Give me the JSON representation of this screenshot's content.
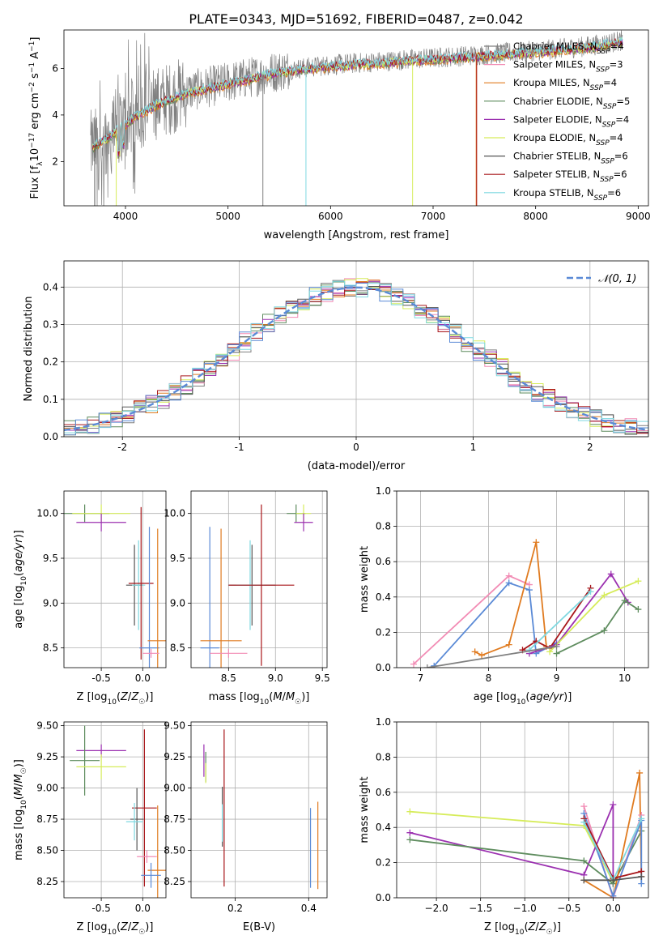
{
  "figure": {
    "title": "PLATE=0343, MJD=51692, FIBERID=0487, z=0.042"
  },
  "colors": {
    "chabrier_miles": "#7f7f7f",
    "salpeter_miles": "#f28bb4",
    "kroupa_miles": "#e07b20",
    "chabrier_elodie": "#5e8c5e",
    "salpeter_elodie": "#9b30b0",
    "kroupa_elodie": "#d6ec5a",
    "chabrier_stelib": "#555555",
    "salpeter_stelib": "#a8161a",
    "kroupa_stelib": "#7fd8e0",
    "normal": "#5a8ad6",
    "grid": "#b0b0b0",
    "data": "#808080",
    "blue_model": "#5a8ad6"
  },
  "chart_data": [
    {
      "id": "spectrum",
      "type": "line",
      "title": "PLATE=0343, MJD=51692, FIBERID=0487, z=0.042",
      "xlabel": "wavelength [Angstrom, rest frame]",
      "ylabel": "Flux [f_λ 10^-17 erg cm^-2 s^-1 A^-1]",
      "xlim": [
        3400,
        9100
      ],
      "ylim": [
        0.1,
        7.65
      ],
      "xticks": [
        4000,
        5000,
        6000,
        7000,
        8000,
        9000
      ],
      "yticks": [
        2,
        4,
        6
      ],
      "legend_position": "right",
      "series": [
        {
          "name": "Chabrier MILES",
          "nssp": "4",
          "color_key": "chabrier_miles"
        },
        {
          "name": "Salpeter MILES",
          "nssp": "3",
          "color_key": "salpeter_miles"
        },
        {
          "name": "Kroupa MILES",
          "nssp": "4",
          "color_key": "kroupa_miles"
        },
        {
          "name": "Chabrier ELODIE",
          "nssp": "5",
          "color_key": "chabrier_elodie"
        },
        {
          "name": "Salpeter ELODIE",
          "nssp": "4",
          "color_key": "salpeter_elodie"
        },
        {
          "name": "Kroupa ELODIE",
          "nssp": "4",
          "color_key": "kroupa_elodie"
        },
        {
          "name": "Chabrier STELIB",
          "nssp": "6",
          "color_key": "chabrier_stelib"
        },
        {
          "name": "Salpeter STELIB",
          "nssp": "6",
          "color_key": "salpeter_stelib"
        },
        {
          "name": "Kroupa STELIB",
          "nssp": "6",
          "color_key": "kroupa_stelib"
        }
      ],
      "continuum": {
        "x": [
          3650,
          3800,
          3950,
          4100,
          4300,
          4600,
          5000,
          5500,
          6000,
          6500,
          7000,
          7500,
          8000,
          8500,
          8850
        ],
        "y": [
          2.6,
          3.0,
          3.5,
          4.0,
          4.5,
          5.0,
          5.4,
          5.9,
          6.15,
          6.3,
          6.45,
          6.6,
          6.75,
          6.95,
          7.2
        ]
      }
    },
    {
      "id": "residuals",
      "type": "line",
      "xlabel": "(data-model)/error",
      "ylabel": "Normed distribution",
      "xlim": [
        -2.5,
        2.5
      ],
      "ylim": [
        0,
        0.47
      ],
      "xticks": [
        -2,
        -1,
        0,
        1,
        2
      ],
      "yticks": [
        0.0,
        0.1,
        0.2,
        0.3,
        0.4
      ],
      "legend": [
        "𝒩(0, 1)"
      ],
      "legend_position": "top-right",
      "grid": true
    },
    {
      "id": "age_vs_z",
      "type": "scatter",
      "xlabel": "Z [log10(Z/Z☉)]",
      "ylabel": "age  [log10(age/yr)]",
      "xlim": [
        -0.95,
        0.28
      ],
      "ylim": [
        8.28,
        10.25
      ],
      "xticks": [
        -0.5,
        0.0
      ],
      "yticks": [
        8.5,
        9.0,
        9.5,
        10.0
      ],
      "grid": true,
      "points": [
        {
          "color_key": "chabrier_elodie",
          "x": -0.7,
          "xerr": 0.3,
          "y": 10.0,
          "yerr": 0.1
        },
        {
          "color_key": "kroupa_elodie",
          "x": -0.5,
          "xerr": 0.35,
          "y": 10.0,
          "yerr": 0.1
        },
        {
          "color_key": "salpeter_elodie",
          "x": -0.5,
          "xerr": 0.3,
          "y": 9.9,
          "yerr": 0.1
        },
        {
          "color_key": "chabrier_stelib",
          "x": -0.1,
          "xerr": 0.1,
          "y": 9.2,
          "yerr": 0.45
        },
        {
          "color_key": "kroupa_stelib",
          "x": -0.05,
          "xerr": 0.08,
          "y": 9.2,
          "yerr": 0.5
        },
        {
          "color_key": "salpeter_stelib",
          "x": -0.02,
          "xerr": 0.15,
          "y": 9.22,
          "yerr": 0.85
        },
        {
          "color_key": "blue_model",
          "x": 0.08,
          "xerr": 0.12,
          "y": 8.5,
          "yerr": 1.35
        },
        {
          "color_key": "kroupa_miles",
          "x": 0.18,
          "xerr": 0.12,
          "y": 8.58,
          "yerr": 1.25
        },
        {
          "color_key": "salpeter_miles",
          "x": 0.1,
          "xerr": 0.1,
          "y": 8.44,
          "yerr": 0.05
        }
      ]
    },
    {
      "id": "age_vs_mass",
      "type": "scatter",
      "xlabel": "mass [log10(M/M☉)]",
      "ylabel": "",
      "xlim": [
        8.1,
        9.55
      ],
      "ylim": [
        8.28,
        10.25
      ],
      "xticks": [
        8.5,
        9.0,
        9.5
      ],
      "yticks": [
        8.5,
        9.0,
        9.5,
        10.0
      ],
      "grid": true,
      "points": [
        {
          "color_key": "chabrier_elodie",
          "x": 9.22,
          "xerr": 0.1,
          "y": 10.0,
          "yerr": 0.1
        },
        {
          "color_key": "kroupa_elodie",
          "x": 9.3,
          "xerr": 0.08,
          "y": 10.0,
          "yerr": 0.1
        },
        {
          "color_key": "salpeter_elodie",
          "x": 9.3,
          "xerr": 0.1,
          "y": 9.9,
          "yerr": 0.1
        },
        {
          "color_key": "chabrier_stelib",
          "x": 8.75,
          "xerr": 0.25,
          "y": 9.2,
          "yerr": 0.45
        },
        {
          "color_key": "kroupa_stelib",
          "x": 8.73,
          "xerr": 0.15,
          "y": 9.2,
          "yerr": 0.5
        },
        {
          "color_key": "salpeter_stelib",
          "x": 8.85,
          "xerr": 0.35,
          "y": 9.2,
          "yerr": 0.9
        },
        {
          "color_key": "blue_model",
          "x": 8.3,
          "xerr": 0.1,
          "y": 8.5,
          "yerr": 1.35
        },
        {
          "color_key": "kroupa_miles",
          "x": 8.42,
          "xerr": 0.22,
          "y": 8.58,
          "yerr": 1.25
        },
        {
          "color_key": "salpeter_miles",
          "x": 8.5,
          "xerr": 0.2,
          "y": 8.44,
          "yerr": 0.05
        }
      ]
    },
    {
      "id": "weight_vs_age",
      "type": "line",
      "xlabel": "age  [log10(age/yr)]",
      "ylabel": "mass weight",
      "xlim": [
        6.65,
        10.35
      ],
      "ylim": [
        0,
        1.0
      ],
      "xticks": [
        7,
        8,
        9,
        10
      ],
      "yticks": [
        0.0,
        0.2,
        0.4,
        0.6,
        0.8,
        1.0
      ],
      "grid": true,
      "series": [
        {
          "color_key": "salpeter_miles",
          "x": [
            6.9,
            8.3,
            8.6
          ],
          "y": [
            0.02,
            0.52,
            0.47
          ]
        },
        {
          "color_key": "blue_model",
          "x": [
            7.2,
            8.3,
            8.6,
            8.7,
            9.0
          ],
          "y": [
            0.01,
            0.48,
            0.44,
            0.08,
            0.14
          ]
        },
        {
          "color_key": "kroupa_miles",
          "x": [
            7.8,
            7.9,
            8.3,
            8.7,
            8.85
          ],
          "y": [
            0.09,
            0.07,
            0.13,
            0.71,
            0.12
          ]
        },
        {
          "color_key": "salpeter_stelib",
          "x": [
            8.5,
            8.7,
            8.9,
            9.5
          ],
          "y": [
            0.1,
            0.15,
            0.11,
            0.45
          ]
        },
        {
          "color_key": "salpeter_elodie",
          "x": [
            8.6,
            9.0,
            9.8,
            10.05
          ],
          "y": [
            0.08,
            0.13,
            0.53,
            0.37
          ]
        },
        {
          "color_key": "kroupa_elodie",
          "x": [
            8.9,
            9.7,
            10.2
          ],
          "y": [
            0.09,
            0.41,
            0.49
          ]
        },
        {
          "color_key": "chabrier_elodie",
          "x": [
            9.0,
            9.7,
            10.0,
            10.2
          ],
          "y": [
            0.08,
            0.21,
            0.38,
            0.33
          ]
        },
        {
          "color_key": "kroupa_stelib",
          "x": [
            8.6,
            9.5
          ],
          "y": [
            0.1,
            0.43
          ]
        },
        {
          "color_key": "chabrier_miles",
          "x": [
            7.1,
            9.0
          ],
          "y": [
            0.0,
            0.12
          ]
        }
      ]
    },
    {
      "id": "mass_vs_z",
      "type": "scatter",
      "xlabel": "Z [log10(Z/Z☉)]",
      "ylabel": "mass [log10(M/M☉)]",
      "xlim": [
        -0.95,
        0.28
      ],
      "ylim": [
        8.12,
        9.53
      ],
      "xticks": [
        -0.5,
        0.0
      ],
      "yticks": [
        8.25,
        8.5,
        8.75,
        9.0,
        9.25,
        9.5
      ],
      "grid": true,
      "points": [
        {
          "color_key": "salpeter_elodie",
          "x": -0.5,
          "xerr": 0.3,
          "y": 9.3,
          "yerr": 0.05
        },
        {
          "color_key": "chabrier_elodie",
          "x": -0.7,
          "xerr": 0.18,
          "y": 9.22,
          "yerr": 0.28
        },
        {
          "color_key": "kroupa_elodie",
          "x": -0.5,
          "xerr": 0.3,
          "y": 9.17,
          "yerr": 0.1
        },
        {
          "color_key": "salpeter_stelib",
          "x": 0.02,
          "xerr": 0.15,
          "y": 8.84,
          "yerr": 0.63
        },
        {
          "color_key": "chabrier_stelib",
          "x": -0.07,
          "xerr": 0.08,
          "y": 8.75,
          "yerr": 0.25
        },
        {
          "color_key": "kroupa_stelib",
          "x": -0.1,
          "xerr": 0.1,
          "y": 8.73,
          "yerr": 0.15
        },
        {
          "color_key": "salpeter_miles",
          "x": 0.05,
          "xerr": 0.12,
          "y": 8.45,
          "yerr": 0.05
        },
        {
          "color_key": "kroupa_miles",
          "x": 0.18,
          "xerr": 0.12,
          "y": 8.34,
          "yerr": 0.52
        },
        {
          "color_key": "blue_model",
          "x": 0.1,
          "xerr": 0.12,
          "y": 8.3,
          "yerr": 0.1
        }
      ]
    },
    {
      "id": "mass_vs_ebv",
      "type": "scatter",
      "xlabel": "E(B-V)",
      "ylabel": "",
      "xlim": [
        0.08,
        0.45
      ],
      "ylim": [
        8.12,
        9.53
      ],
      "xticks": [
        0.2,
        0.4
      ],
      "yticks": [
        8.25,
        8.5,
        8.75,
        9.0,
        9.25,
        9.5
      ],
      "grid": true,
      "points": [
        {
          "color_key": "salpeter_elodie",
          "x": 0.115,
          "y": 9.22,
          "yerr": 0.13
        },
        {
          "color_key": "chabrier_elodie",
          "x": 0.12,
          "y": 9.17,
          "yerr": 0.12
        },
        {
          "color_key": "kroupa_elodie",
          "x": 0.12,
          "y": 9.12,
          "yerr": 0.08
        },
        {
          "color_key": "salpeter_stelib",
          "x": 0.17,
          "y": 8.84,
          "yerr": 0.63
        },
        {
          "color_key": "chabrier_stelib",
          "x": 0.165,
          "y": 8.77,
          "yerr": 0.24
        },
        {
          "color_key": "kroupa_stelib",
          "x": 0.165,
          "y": 8.72,
          "yerr": 0.15
        },
        {
          "color_key": "blue_model",
          "x": 0.405,
          "y": 8.52,
          "yerr": 0.32
        },
        {
          "color_key": "kroupa_miles",
          "x": 0.425,
          "y": 8.54,
          "yerr": 0.35
        }
      ]
    },
    {
      "id": "weight_vs_z",
      "type": "line",
      "xlabel": "Z [log10(Z/Z☉)]",
      "ylabel": "mass weight",
      "xlim": [
        -2.45,
        0.4
      ],
      "ylim": [
        0,
        1.0
      ],
      "xticks": [
        -2.0,
        -1.5,
        -1.0,
        -0.5,
        0.0
      ],
      "yticks": [
        0.0,
        0.2,
        0.4,
        0.6,
        0.8,
        1.0
      ],
      "grid": true,
      "series": [
        {
          "color_key": "kroupa_elodie",
          "x": [
            -2.3,
            -0.33,
            0.0
          ],
          "y": [
            0.49,
            0.41,
            0.09
          ]
        },
        {
          "color_key": "salpeter_elodie",
          "x": [
            -2.3,
            -0.33,
            0.0,
            0.0
          ],
          "y": [
            0.37,
            0.13,
            0.53,
            0.08
          ]
        },
        {
          "color_key": "chabrier_elodie",
          "x": [
            -2.3,
            -0.33,
            0.0,
            0.32
          ],
          "y": [
            0.33,
            0.21,
            0.08,
            0.38
          ]
        },
        {
          "color_key": "kroupa_miles",
          "x": [
            -0.33,
            0.0,
            0.3,
            0.32
          ],
          "y": [
            0.1,
            0.0,
            0.71,
            0.12
          ]
        },
        {
          "color_key": "salpeter_miles",
          "x": [
            -0.33,
            0.0,
            0.32
          ],
          "y": [
            0.52,
            0.0,
            0.47
          ]
        },
        {
          "color_key": "blue_model",
          "x": [
            -0.33,
            0.0,
            0.32,
            0.32
          ],
          "y": [
            0.48,
            0.01,
            0.44,
            0.08
          ]
        },
        {
          "color_key": "salpeter_stelib",
          "x": [
            -0.33,
            0.0,
            0.32
          ],
          "y": [
            0.45,
            0.11,
            0.15
          ]
        },
        {
          "color_key": "kroupa_stelib",
          "x": [
            -0.33,
            0.0,
            0.32
          ],
          "y": [
            0.43,
            0.1,
            0.45
          ]
        },
        {
          "color_key": "chabrier_stelib",
          "x": [
            -0.33,
            0.0,
            0.32
          ],
          "y": [
            0.1,
            0.1,
            0.12
          ]
        }
      ]
    }
  ]
}
